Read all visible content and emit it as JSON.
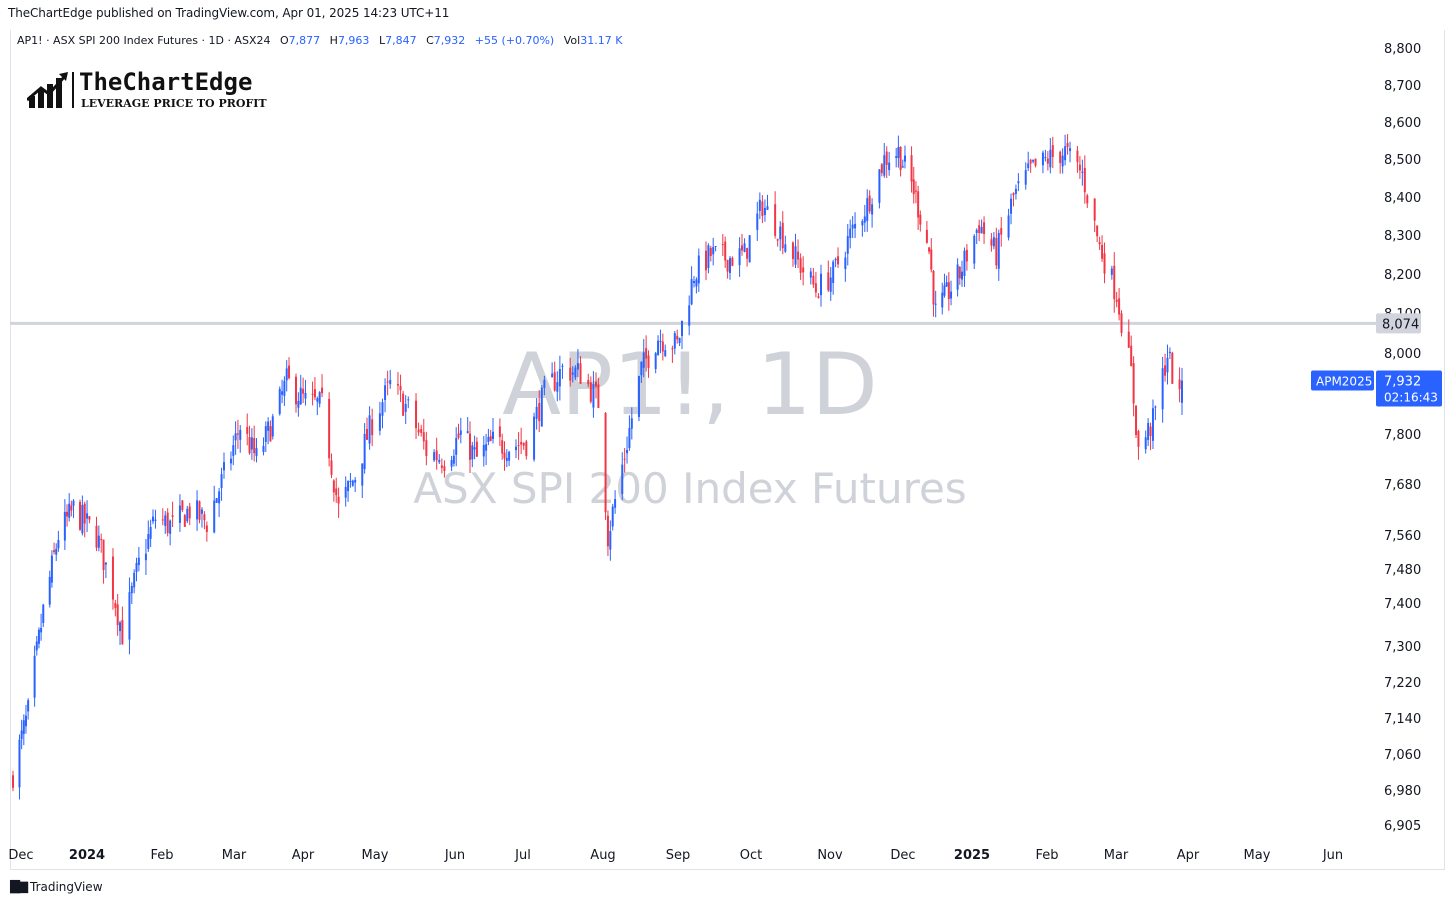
{
  "header": {
    "publish_line": "TheChartEdge published on TradingView.com, Apr 01, 2025 14:23 UTC+11"
  },
  "legend": {
    "symbol": "AP1! · ASX SPI 200 Index Futures · 1D · ASX24",
    "o_label": "O",
    "o_value": "7,877",
    "h_label": "H",
    "h_value": "7,963",
    "l_label": "L",
    "l_value": "7,847",
    "c_label": "C",
    "c_value": "7,932",
    "change": "+55 (+0.70%)",
    "vol_label": "Vol",
    "vol_value": "31.17 K"
  },
  "brand": {
    "name": "TheChartEdge",
    "tagline": "LEVERAGE PRICE TO PROFIT"
  },
  "watermark": {
    "symbol": "AP1!, 1D",
    "description": "ASX SPI 200 Index Futures"
  },
  "footer": {
    "icon": "tradingview-logo-icon",
    "label": "TradingView"
  },
  "colors": {
    "up": "#2962ff",
    "down": "#f23645",
    "hline": "#d1d4dc",
    "price_tag": "#2962ff",
    "hline_tag": "#d1d4dc"
  },
  "chart_data": {
    "type": "candlestick",
    "y_ticks": [
      "8,800",
      "8,700",
      "8,600",
      "8,500",
      "8,400",
      "8,300",
      "8,200",
      "8,100",
      "8,000",
      "7,800",
      "7,680",
      "7,560",
      "7,480",
      "7,400",
      "7,300",
      "7,220",
      "7,140",
      "7,060",
      "6,980",
      "6,905"
    ],
    "x_ticks": [
      "Dec",
      "2024",
      "Feb",
      "Mar",
      "Apr",
      "May",
      "Jun",
      "Jul",
      "Aug",
      "Sep",
      "Oct",
      "Nov",
      "Dec",
      "2025",
      "Feb",
      "Mar",
      "Apr",
      "May",
      "Jun"
    ],
    "x_range": [
      "2023-12-01",
      "2025-06-10"
    ],
    "horizontal_line": {
      "value": 8074,
      "label": "8,074"
    },
    "last_price": {
      "value": 7932,
      "label": "7,932",
      "countdown": "02:16:43",
      "contract": "APM2025"
    },
    "series_path": [
      [
        "2023-12-01",
        7020
      ],
      [
        "2023-12-08",
        7150
      ],
      [
        "2023-12-15",
        7380
      ],
      [
        "2023-12-22",
        7560
      ],
      [
        "2023-12-29",
        7620
      ],
      [
        "2024-01-08",
        7560
      ],
      [
        "2024-01-15",
        7430
      ],
      [
        "2024-01-19",
        7330
      ],
      [
        "2024-01-26",
        7490
      ],
      [
        "2024-02-02",
        7600
      ],
      [
        "2024-02-09",
        7580
      ],
      [
        "2024-02-16",
        7620
      ],
      [
        "2024-02-23",
        7590
      ],
      [
        "2024-03-01",
        7700
      ],
      [
        "2024-03-08",
        7820
      ],
      [
        "2024-03-15",
        7740
      ],
      [
        "2024-03-22",
        7830
      ],
      [
        "2024-03-28",
        7930
      ],
      [
        "2024-04-05",
        7880
      ],
      [
        "2024-04-12",
        7870
      ],
      [
        "2024-04-19",
        7620
      ],
      [
        "2024-04-26",
        7700
      ],
      [
        "2024-05-03",
        7830
      ],
      [
        "2024-05-10",
        7920
      ],
      [
        "2024-05-17",
        7860
      ],
      [
        "2024-05-24",
        7760
      ],
      [
        "2024-05-31",
        7740
      ],
      [
        "2024-06-07",
        7800
      ],
      [
        "2024-06-14",
        7740
      ],
      [
        "2024-06-21",
        7780
      ],
      [
        "2024-06-28",
        7770
      ],
      [
        "2024-07-05",
        7780
      ],
      [
        "2024-07-12",
        7900
      ],
      [
        "2024-07-19",
        7960
      ],
      [
        "2024-07-26",
        7950
      ],
      [
        "2024-08-02",
        7880
      ],
      [
        "2024-08-06",
        7560
      ],
      [
        "2024-08-13",
        7750
      ],
      [
        "2024-08-20",
        7960
      ],
      [
        "2024-08-27",
        8040
      ],
      [
        "2024-09-04",
        8020
      ],
      [
        "2024-09-11",
        8200
      ],
      [
        "2024-09-18",
        8250
      ],
      [
        "2024-09-25",
        8240
      ],
      [
        "2024-10-02",
        8250
      ],
      [
        "2024-10-09",
        8380
      ],
      [
        "2024-10-16",
        8310
      ],
      [
        "2024-10-23",
        8230
      ],
      [
        "2024-10-30",
        8160
      ],
      [
        "2024-11-06",
        8200
      ],
      [
        "2024-11-13",
        8300
      ],
      [
        "2024-11-20",
        8380
      ],
      [
        "2024-11-27",
        8500
      ],
      [
        "2024-12-03",
        8520
      ],
      [
        "2024-12-10",
        8420
      ],
      [
        "2024-12-17",
        8260
      ],
      [
        "2024-12-20",
        8100
      ],
      [
        "2024-12-31",
        8200
      ],
      [
        "2025-01-08",
        8330
      ],
      [
        "2025-01-15",
        8250
      ],
      [
        "2025-01-22",
        8400
      ],
      [
        "2025-01-29",
        8470
      ],
      [
        "2025-02-05",
        8500
      ],
      [
        "2025-02-12",
        8520
      ],
      [
        "2025-02-19",
        8460
      ],
      [
        "2025-02-26",
        8270
      ],
      [
        "2025-03-05",
        8150
      ],
      [
        "2025-03-11",
        7950
      ],
      [
        "2025-03-14",
        7760
      ],
      [
        "2025-03-20",
        7830
      ],
      [
        "2025-03-26",
        8000
      ],
      [
        "2025-03-31",
        7877
      ],
      [
        "2025-04-01",
        7932
      ]
    ]
  }
}
